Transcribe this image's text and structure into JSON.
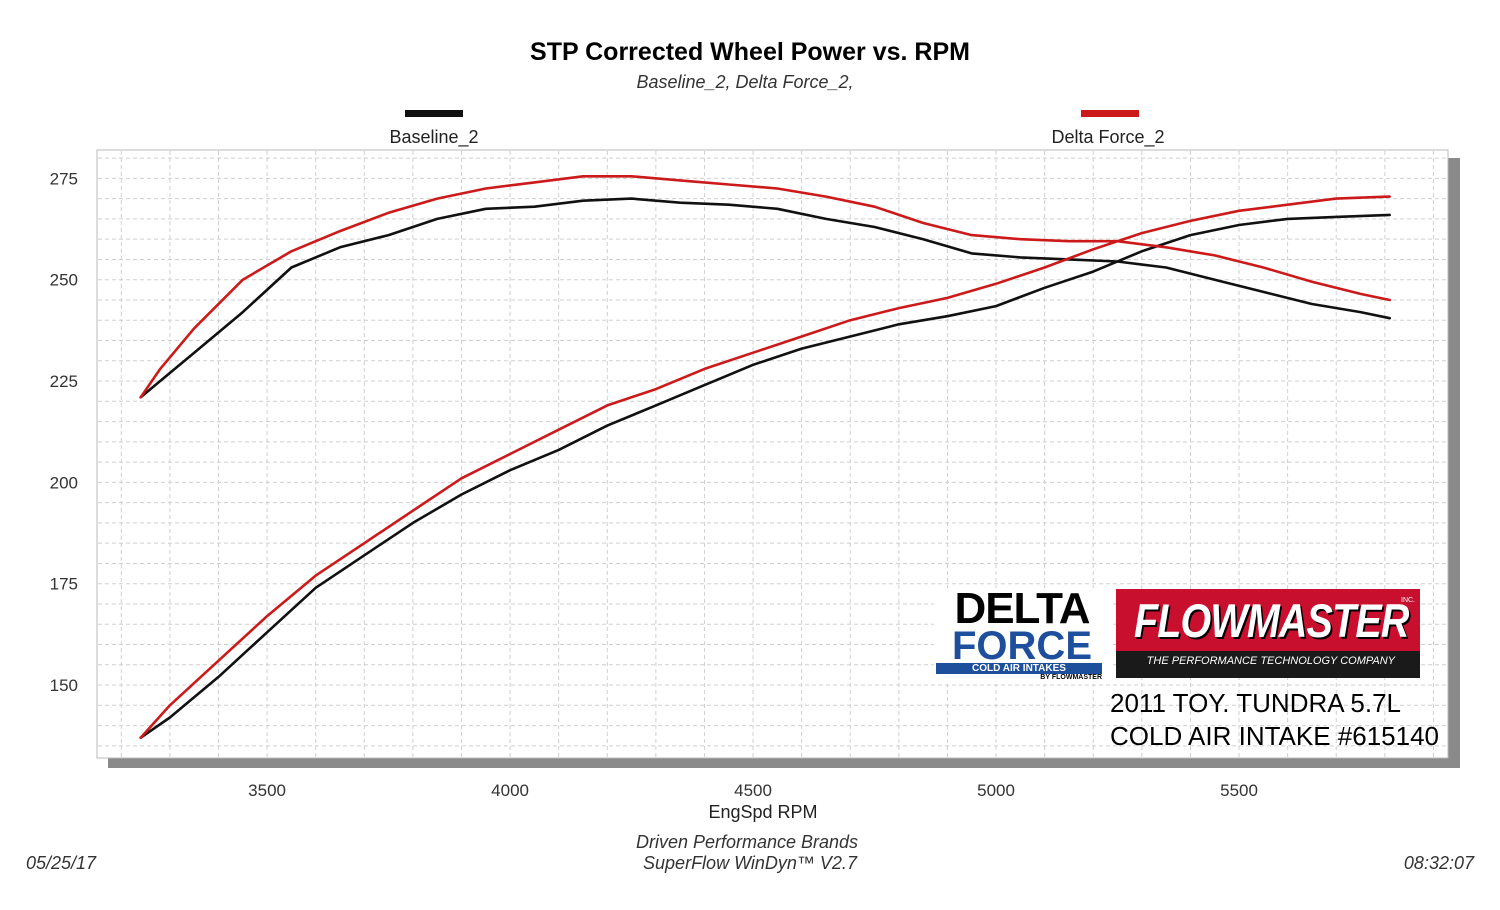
{
  "chart_data": {
    "type": "line",
    "title": "STP Corrected Wheel Power vs. RPM",
    "subtitle": "Baseline_2, Delta Force_2,",
    "xlabel": "EngSpd  RPM",
    "ylabel": "",
    "xlim": [
      3150,
      5930
    ],
    "ylim": [
      132,
      282
    ],
    "x_ticks": [
      3500,
      4000,
      4500,
      5000,
      5500
    ],
    "y_ticks": [
      150,
      175,
      200,
      225,
      250,
      275
    ],
    "grid": true,
    "legend": [
      {
        "name": "Baseline_2",
        "color": "#111111"
      },
      {
        "name": "Delta Force_2",
        "color": "#cc1a1a"
      }
    ],
    "series": [
      {
        "name": "Baseline_2 (power)",
        "color": "#111111",
        "x": [
          3240,
          3280,
          3350,
          3450,
          3550,
          3650,
          3750,
          3850,
          3950,
          4050,
          4150,
          4250,
          4350,
          4450,
          4550,
          4650,
          4750,
          4850,
          4950,
          5050,
          5150,
          5250,
          5350,
          5450,
          5550,
          5650,
          5750,
          5810
        ],
        "y": [
          221,
          225,
          232,
          242,
          253,
          258,
          261,
          265,
          267.5,
          268,
          269.5,
          270,
          269,
          268.5,
          267.5,
          265,
          263,
          260,
          256.5,
          255.5,
          255,
          254.5,
          253,
          250,
          247,
          244,
          242,
          240.5
        ]
      },
      {
        "name": "Baseline_2 (torque)",
        "color": "#111111",
        "x": [
          3240,
          3300,
          3400,
          3500,
          3600,
          3700,
          3800,
          3900,
          4000,
          4100,
          4200,
          4300,
          4400,
          4500,
          4600,
          4700,
          4800,
          4900,
          5000,
          5100,
          5200,
          5300,
          5400,
          5500,
          5600,
          5700,
          5810
        ],
        "y": [
          137,
          142,
          152,
          163,
          174,
          182,
          190,
          197,
          203,
          208,
          214,
          219,
          224,
          229,
          233,
          236,
          239,
          241,
          243.5,
          248,
          252,
          257,
          261,
          263.5,
          265,
          265.5,
          266
        ]
      },
      {
        "name": "Delta Force_2 (power)",
        "color": "#cc1a1a",
        "x": [
          3240,
          3280,
          3350,
          3450,
          3550,
          3650,
          3750,
          3850,
          3950,
          4050,
          4150,
          4250,
          4350,
          4450,
          4550,
          4650,
          4750,
          4850,
          4950,
          5050,
          5150,
          5250,
          5350,
          5450,
          5550,
          5650,
          5750,
          5810
        ],
        "y": [
          221,
          228,
          238,
          250,
          257,
          262,
          266.5,
          270,
          272.5,
          274,
          275.5,
          275.5,
          274.5,
          273.5,
          272.5,
          270.5,
          268,
          264,
          261,
          260,
          259.5,
          259.5,
          258,
          256,
          253,
          249.5,
          246.5,
          245
        ]
      },
      {
        "name": "Delta Force_2 (torque)",
        "color": "#cc1a1a",
        "x": [
          3240,
          3300,
          3400,
          3500,
          3600,
          3700,
          3800,
          3900,
          4000,
          4100,
          4200,
          4300,
          4400,
          4500,
          4600,
          4700,
          4800,
          4900,
          5000,
          5100,
          5200,
          5300,
          5400,
          5500,
          5600,
          5700,
          5810
        ],
        "y": [
          137,
          145,
          156,
          167,
          177,
          185,
          193,
          201,
          207,
          213,
          219,
          223,
          228,
          232,
          236,
          240,
          243,
          245.5,
          249,
          253,
          257.5,
          261.5,
          264.5,
          267,
          268.5,
          270,
          270.5
        ]
      }
    ]
  },
  "footer": {
    "date": "05/25/17",
    "time": "08:32:07",
    "company": "Driven Performance Brands",
    "software": "SuperFlow WinDyn™  V2.7"
  },
  "logos": {
    "delta_line1": "DELTA",
    "delta_line2": "FORCE",
    "delta_tag": "COLD AIR INTAKES",
    "delta_by": "BY FLOWMASTER",
    "flowmaster_name": "FLOWMASTER",
    "flowmaster_inc": "INC.",
    "flowmaster_tagline": "THE PERFORMANCE TECHNOLOGY COMPANY"
  },
  "vehicle": {
    "line1": "2011 TOY. TUNDRA 5.7L",
    "line2": "COLD AIR INTAKE #615140"
  },
  "colors": {
    "grid": "#d0d0d0",
    "frame_shadow": "#8a8a8a",
    "delta_blue": "#1e4f9c",
    "flowmaster_red": "#c8102e"
  }
}
